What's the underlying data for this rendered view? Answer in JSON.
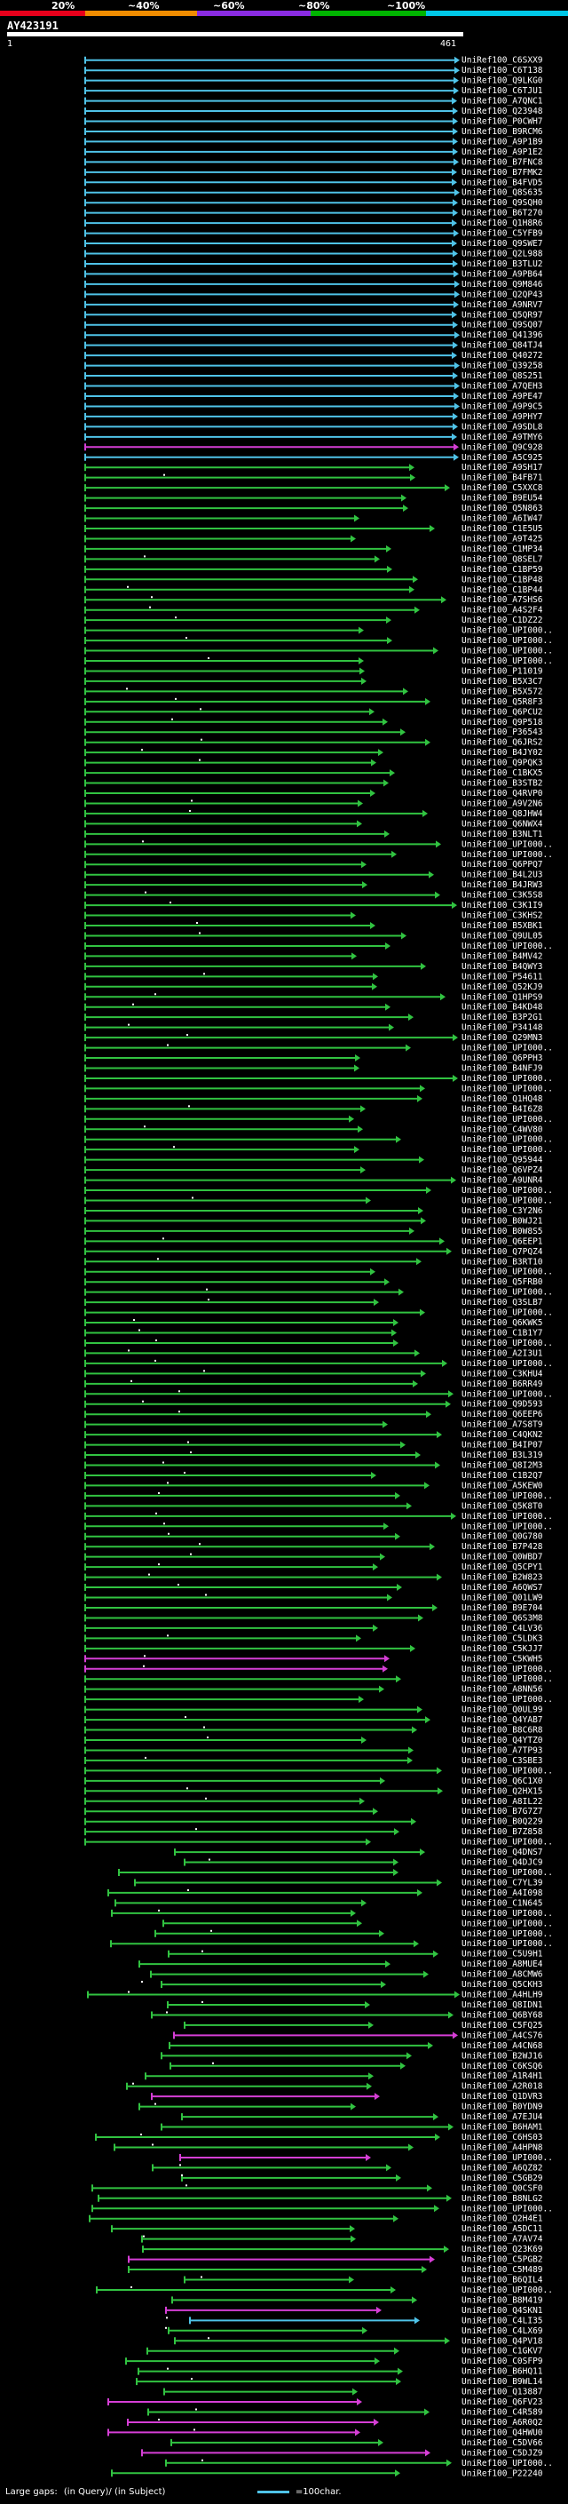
{
  "header": {
    "percent_labels": [
      "20%",
      "~40%",
      "~60%",
      "~80%",
      "~100%"
    ],
    "scale_colors": [
      "#e8001b",
      "#f08c00",
      "#8a2be2",
      "#00b400",
      "#00c8e8"
    ],
    "query_id": "AY423191",
    "start": "1",
    "end": "461"
  },
  "legend": {
    "large_gaps_label": "Large gaps:",
    "in_query_label": "(in Query)/",
    "in_subject_label": "(in Subject)",
    "scale_label": "=100char."
  },
  "colors": {
    "cyan": "#4fc3e8",
    "green": "#31c341",
    "magenta": "#d53ed5",
    "query_bar": "#ffffff"
  },
  "hits": [
    {
      "id": "UniRef100_C6SXX9",
      "color": "cyan"
    },
    {
      "id": "UniRef100_C6T138",
      "color": "cyan"
    },
    {
      "id": "UniRef100_Q9LKG0",
      "color": "cyan"
    },
    {
      "id": "UniRef100_C6TJU1",
      "color": "cyan"
    },
    {
      "id": "UniRef100_A7QNC1",
      "color": "cyan"
    },
    {
      "id": "UniRef100_Q23948",
      "color": "cyan"
    },
    {
      "id": "UniRef100_P0CWH7",
      "color": "cyan"
    },
    {
      "id": "UniRef100_B9RCM6",
      "color": "cyan"
    },
    {
      "id": "UniRef100_A9P1B9",
      "color": "cyan"
    },
    {
      "id": "UniRef100_A9P1E2",
      "color": "cyan"
    },
    {
      "id": "UniRef100_B7FNC8",
      "color": "cyan"
    },
    {
      "id": "UniRef100_B7FMK2",
      "color": "cyan"
    },
    {
      "id": "UniRef100_B4FVD5",
      "color": "cyan"
    },
    {
      "id": "UniRef100_Q8S635",
      "color": "cyan"
    },
    {
      "id": "UniRef100_Q9SQH0",
      "color": "cyan"
    },
    {
      "id": "UniRef100_B6T270",
      "color": "cyan"
    },
    {
      "id": "UniRef100_Q1H8R6",
      "color": "cyan"
    },
    {
      "id": "UniRef100_C5YFB9",
      "color": "cyan"
    },
    {
      "id": "UniRef100_Q9SWE7",
      "color": "cyan"
    },
    {
      "id": "UniRef100_Q2L988",
      "color": "cyan"
    },
    {
      "id": "UniRef100_B3TLU2",
      "color": "cyan"
    },
    {
      "id": "UniRef100_A9PB64",
      "color": "cyan"
    },
    {
      "id": "UniRef100_Q9M846",
      "color": "cyan"
    },
    {
      "id": "UniRef100_Q2QP43",
      "color": "cyan"
    },
    {
      "id": "UniRef100_A9NRV7",
      "color": "cyan"
    },
    {
      "id": "UniRef100_Q5QR97",
      "color": "cyan"
    },
    {
      "id": "UniRef100_Q9SQ07",
      "color": "cyan"
    },
    {
      "id": "UniRef100_Q41396",
      "color": "cyan"
    },
    {
      "id": "UniRef100_Q84TJ4",
      "color": "cyan"
    },
    {
      "id": "UniRef100_Q40272",
      "color": "cyan"
    },
    {
      "id": "UniRef100_Q39258",
      "color": "cyan"
    },
    {
      "id": "UniRef100_Q8S251",
      "color": "cyan"
    },
    {
      "id": "UniRef100_A7QEH3",
      "color": "cyan"
    },
    {
      "id": "UniRef100_A9PE47",
      "color": "cyan"
    },
    {
      "id": "UniRef100_A9P9C5",
      "color": "cyan"
    },
    {
      "id": "UniRef100_A9PHY7",
      "color": "cyan"
    },
    {
      "id": "UniRef100_A9SDL8",
      "color": "cyan"
    },
    {
      "id": "UniRef100_A9TMY6",
      "color": "cyan"
    },
    {
      "id": "UniRef100_Q9C928",
      "color": "magenta"
    },
    {
      "id": "UniRef100_A5C925",
      "color": "cyan"
    },
    {
      "id": "UniRef100_A9SH17",
      "color": "green"
    },
    {
      "id": "UniRef100_B4FB71",
      "color": "green"
    },
    {
      "id": "UniRef100_C5XXC8",
      "color": "green"
    },
    {
      "id": "UniRef100_B9EU54",
      "color": "green"
    },
    {
      "id": "UniRef100_Q5N863",
      "color": "green"
    },
    {
      "id": "UniRef100_A6IW47",
      "color": "green"
    },
    {
      "id": "UniRef100_C1E5U5",
      "color": "green"
    },
    {
      "id": "UniRef100_A9T425",
      "color": "green"
    },
    {
      "id": "UniRef100_C1MP34",
      "color": "green"
    },
    {
      "id": "UniRef100_Q8SEL7",
      "color": "green"
    },
    {
      "id": "UniRef100_C1BP59",
      "color": "green"
    },
    {
      "id": "UniRef100_C1BP48",
      "color": "green"
    },
    {
      "id": "UniRef100_C1BP44",
      "color": "green"
    },
    {
      "id": "UniRef100_A7SHS6",
      "color": "green"
    },
    {
      "id": "UniRef100_A4S2F4",
      "color": "green"
    },
    {
      "id": "UniRef100_C1DZ22",
      "color": "green"
    },
    {
      "id": "UniRef100_UPI000..",
      "color": "green"
    },
    {
      "id": "UniRef100_UPI000..",
      "color": "green"
    },
    {
      "id": "UniRef100_UPI000..",
      "color": "green"
    },
    {
      "id": "UniRef100_UPI000..",
      "color": "green"
    },
    {
      "id": "UniRef100_P11019",
      "color": "green"
    },
    {
      "id": "UniRef100_B5X3C7",
      "color": "green"
    },
    {
      "id": "UniRef100_B5X572",
      "color": "green"
    },
    {
      "id": "UniRef100_Q5R8F3",
      "color": "green"
    },
    {
      "id": "UniRef100_Q6PCU2",
      "color": "green"
    },
    {
      "id": "UniRef100_Q9P518",
      "color": "green"
    },
    {
      "id": "UniRef100_P36543",
      "color": "green"
    },
    {
      "id": "UniRef100_Q6JRS2",
      "color": "green"
    },
    {
      "id": "UniRef100_B4JY02",
      "color": "green"
    },
    {
      "id": "UniRef100_Q9PQK3",
      "color": "green"
    },
    {
      "id": "UniRef100_C1BKX5",
      "color": "green"
    },
    {
      "id": "UniRef100_B3STB2",
      "color": "green"
    },
    {
      "id": "UniRef100_Q4RVP0",
      "color": "green"
    },
    {
      "id": "UniRef100_A9V2N6",
      "color": "green"
    },
    {
      "id": "UniRef100_Q8JHW4",
      "color": "green"
    },
    {
      "id": "UniRef100_Q6NWX4",
      "color": "green"
    },
    {
      "id": "UniRef100_B3NLT1",
      "color": "green"
    },
    {
      "id": "UniRef100_UPI000..",
      "color": "green"
    },
    {
      "id": "UniRef100_UPI000..",
      "color": "green"
    },
    {
      "id": "UniRef100_Q6PPQ7",
      "color": "green"
    },
    {
      "id": "UniRef100_B4L2U3",
      "color": "green"
    },
    {
      "id": "UniRef100_B4JRW3",
      "color": "green"
    },
    {
      "id": "UniRef100_C3K5S8",
      "color": "green"
    },
    {
      "id": "UniRef100_C3K1I9",
      "color": "green"
    },
    {
      "id": "UniRef100_C3KHS2",
      "color": "green"
    },
    {
      "id": "UniRef100_B5XBK1",
      "color": "green"
    },
    {
      "id": "UniRef100_Q9UL05",
      "color": "green"
    },
    {
      "id": "UniRef100_UPI000..",
      "color": "green"
    },
    {
      "id": "UniRef100_B4MV42",
      "color": "green"
    },
    {
      "id": "UniRef100_B4QWY3",
      "color": "green"
    },
    {
      "id": "UniRef100_P54611",
      "color": "green"
    },
    {
      "id": "UniRef100_Q52KJ9",
      "color": "green"
    },
    {
      "id": "UniRef100_Q1HPS9",
      "color": "green"
    },
    {
      "id": "UniRef100_B4KD48",
      "color": "green"
    },
    {
      "id": "UniRef100_B3P2G1",
      "color": "green"
    },
    {
      "id": "UniRef100_P34148",
      "color": "green"
    },
    {
      "id": "UniRef100_Q29MN3",
      "color": "green"
    },
    {
      "id": "UniRef100_UPI000..",
      "color": "green"
    },
    {
      "id": "UniRef100_Q6PPH3",
      "color": "green"
    },
    {
      "id": "UniRef100_B4NFJ9",
      "color": "green"
    },
    {
      "id": "UniRef100_UPI000..",
      "color": "green"
    },
    {
      "id": "UniRef100_UPI000..",
      "color": "green"
    },
    {
      "id": "UniRef100_Q1HQ48",
      "color": "green"
    },
    {
      "id": "UniRef100_B4I6Z8",
      "color": "green"
    },
    {
      "id": "UniRef100_UPI000..",
      "color": "green"
    },
    {
      "id": "UniRef100_C4WV80",
      "color": "green"
    },
    {
      "id": "UniRef100_UPI000..",
      "color": "green"
    },
    {
      "id": "UniRef100_UPI000..",
      "color": "green"
    },
    {
      "id": "UniRef100_Q95944",
      "color": "green"
    },
    {
      "id": "UniRef100_Q6VPZ4",
      "color": "green"
    },
    {
      "id": "UniRef100_A9UNR4",
      "color": "green"
    },
    {
      "id": "UniRef100_UPI000..",
      "color": "green"
    },
    {
      "id": "UniRef100_UPI000..",
      "color": "green"
    },
    {
      "id": "UniRef100_C3Y2N6",
      "color": "green"
    },
    {
      "id": "UniRef100_B0WJ21",
      "color": "green"
    },
    {
      "id": "UniRef100_B0W8S5",
      "color": "green"
    },
    {
      "id": "UniRef100_Q6EEP1",
      "color": "green"
    },
    {
      "id": "UniRef100_Q7PQZ4",
      "color": "green"
    },
    {
      "id": "UniRef100_B3RT10",
      "color": "green"
    },
    {
      "id": "UniRef100_UPI000..",
      "color": "green"
    },
    {
      "id": "UniRef100_Q5FRB0",
      "color": "green"
    },
    {
      "id": "UniRef100_UPI000..",
      "color": "green"
    },
    {
      "id": "UniRef100_Q3SLB7",
      "color": "green"
    },
    {
      "id": "UniRef100_UPI000..",
      "color": "green"
    },
    {
      "id": "UniRef100_Q6KWK5",
      "color": "green"
    },
    {
      "id": "UniRef100_C1B1Y7",
      "color": "green"
    },
    {
      "id": "UniRef100_UPI000..",
      "color": "green"
    },
    {
      "id": "UniRef100_A2I3U1",
      "color": "green"
    },
    {
      "id": "UniRef100_UPI000..",
      "color": "green"
    },
    {
      "id": "UniRef100_C3KHU4",
      "color": "green"
    },
    {
      "id": "UniRef100_B6RR49",
      "color": "green"
    },
    {
      "id": "UniRef100_UPI000..",
      "color": "green"
    },
    {
      "id": "UniRef100_Q9D593",
      "color": "green"
    },
    {
      "id": "UniRef100_Q6EEP6",
      "color": "green"
    },
    {
      "id": "UniRef100_A7S8T9",
      "color": "green"
    },
    {
      "id": "UniRef100_C4QKN2",
      "color": "green"
    },
    {
      "id": "UniRef100_B4IP07",
      "color": "green"
    },
    {
      "id": "UniRef100_B3L319",
      "color": "green"
    },
    {
      "id": "UniRef100_Q8I2M3",
      "color": "green"
    },
    {
      "id": "UniRef100_C1B2Q7",
      "color": "green"
    },
    {
      "id": "UniRef100_A5KEW0",
      "color": "green"
    },
    {
      "id": "UniRef100_UPI000..",
      "color": "green"
    },
    {
      "id": "UniRef100_Q5K8T0",
      "color": "green"
    },
    {
      "id": "UniRef100_UPI000..",
      "color": "green"
    },
    {
      "id": "UniRef100_UPI000..",
      "color": "green"
    },
    {
      "id": "UniRef100_Q0G780",
      "color": "green"
    },
    {
      "id": "UniRef100_B7P428",
      "color": "green"
    },
    {
      "id": "UniRef100_Q0WBD7",
      "color": "green"
    },
    {
      "id": "UniRef100_Q5CPY1",
      "color": "green"
    },
    {
      "id": "UniRef100_B2W823",
      "color": "green"
    },
    {
      "id": "UniRef100_A6QWS7",
      "color": "green"
    },
    {
      "id": "UniRef100_Q01LW9",
      "color": "green"
    },
    {
      "id": "UniRef100_B9E704",
      "color": "green"
    },
    {
      "id": "UniRef100_Q6S3M8",
      "color": "green"
    },
    {
      "id": "UniRef100_C4LV36",
      "color": "green"
    },
    {
      "id": "UniRef100_C5LDK3",
      "color": "green"
    },
    {
      "id": "UniRef100_C5KJJ7",
      "color": "green"
    },
    {
      "id": "UniRef100_C5KWH5",
      "color": "magenta"
    },
    {
      "id": "UniRef100_UPI000..",
      "color": "magenta"
    },
    {
      "id": "UniRef100_UPI000..",
      "color": "green"
    },
    {
      "id": "UniRef100_A8NN56",
      "color": "green"
    },
    {
      "id": "UniRef100_UPI000..",
      "color": "green"
    },
    {
      "id": "UniRef100_Q0UL99",
      "color": "green"
    },
    {
      "id": "UniRef100_Q4YAB7",
      "color": "green"
    },
    {
      "id": "UniRef100_B8C6R8",
      "color": "green"
    },
    {
      "id": "UniRef100_Q4YTZ0",
      "color": "green"
    },
    {
      "id": "UniRef100_A7TP93",
      "color": "green"
    },
    {
      "id": "UniRef100_C3SBE3",
      "color": "green"
    },
    {
      "id": "UniRef100_UPI000..",
      "color": "green"
    },
    {
      "id": "UniRef100_Q6C1X0",
      "color": "green"
    },
    {
      "id": "UniRef100_Q2HX15",
      "color": "green"
    },
    {
      "id": "UniRef100_A8IL22",
      "color": "green"
    },
    {
      "id": "UniRef100_B7G7Z7",
      "color": "green"
    },
    {
      "id": "UniRef100_B0Q229",
      "color": "green"
    },
    {
      "id": "UniRef100_B7Z858",
      "color": "green"
    },
    {
      "id": "UniRef100_UPI000..",
      "color": "green"
    },
    {
      "id": "UniRef100_Q4DNS7",
      "color": "green"
    },
    {
      "id": "UniRef100_Q4DJC9",
      "color": "green"
    },
    {
      "id": "UniRef100_UPI000..",
      "color": "green"
    },
    {
      "id": "UniRef100_C7YL39",
      "color": "green"
    },
    {
      "id": "UniRef100_A4I098",
      "color": "green"
    },
    {
      "id": "UniRef100_C1N645",
      "color": "green"
    },
    {
      "id": "UniRef100_UPI000..",
      "color": "green"
    },
    {
      "id": "UniRef100_UPI000..",
      "color": "green"
    },
    {
      "id": "UniRef100_UPI000..",
      "color": "green"
    },
    {
      "id": "UniRef100_UPI000..",
      "color": "green"
    },
    {
      "id": "UniRef100_C5U9H1",
      "color": "green"
    },
    {
      "id": "UniRef100_A8MUE4",
      "color": "green"
    },
    {
      "id": "UniRef100_A8CMW6",
      "color": "green"
    },
    {
      "id": "UniRef100_Q5CKH3",
      "color": "green"
    },
    {
      "id": "UniRef100_A4HLH9",
      "color": "green"
    },
    {
      "id": "UniRef100_Q8IDN1",
      "color": "green"
    },
    {
      "id": "UniRef100_Q6BY68",
      "color": "green"
    },
    {
      "id": "UniRef100_C5FQ25",
      "color": "green"
    },
    {
      "id": "UniRef100_A4CS76",
      "color": "magenta"
    },
    {
      "id": "UniRef100_A4CN68",
      "color": "green"
    },
    {
      "id": "UniRef100_B2WJ16",
      "color": "green"
    },
    {
      "id": "UniRef100_C6KSQ6",
      "color": "green"
    },
    {
      "id": "UniRef100_A1R4H1",
      "color": "green"
    },
    {
      "id": "UniRef100_A2R018",
      "color": "green"
    },
    {
      "id": "UniRef100_Q1DVR3",
      "color": "magenta"
    },
    {
      "id": "UniRef100_B0YDN9",
      "color": "green"
    },
    {
      "id": "UniRef100_A7EJU4",
      "color": "green"
    },
    {
      "id": "UniRef100_B6HAM1",
      "color": "green"
    },
    {
      "id": "UniRef100_C6HS03",
      "color": "green"
    },
    {
      "id": "UniRef100_A4HPN8",
      "color": "green"
    },
    {
      "id": "UniRef100_UPI000..",
      "color": "magenta"
    },
    {
      "id": "UniRef100_A6QZ82",
      "color": "green"
    },
    {
      "id": "UniRef100_C5GB29",
      "color": "green"
    },
    {
      "id": "UniRef100_Q0CSF0",
      "color": "green"
    },
    {
      "id": "UniRef100_B8NLG2",
      "color": "green"
    },
    {
      "id": "UniRef100_UPI000..",
      "color": "green"
    },
    {
      "id": "UniRef100_Q2H4E1",
      "color": "green"
    },
    {
      "id": "UniRef100_A5DC11",
      "color": "green"
    },
    {
      "id": "UniRef100_A7AV74",
      "color": "green"
    },
    {
      "id": "UniRef100_Q23K69",
      "color": "green"
    },
    {
      "id": "UniRef100_C5PGB2",
      "color": "magenta"
    },
    {
      "id": "UniRef100_C5M489",
      "color": "green"
    },
    {
      "id": "UniRef100_B6QIL4",
      "color": "green"
    },
    {
      "id": "UniRef100_UPI000..",
      "color": "green"
    },
    {
      "id": "UniRef100_B8M419",
      "color": "green"
    },
    {
      "id": "UniRef100_Q4SKN1",
      "color": "magenta"
    },
    {
      "id": "UniRef100_C4LI35",
      "color": "cyan"
    },
    {
      "id": "UniRef100_C4LX69",
      "color": "green"
    },
    {
      "id": "UniRef100_Q4PV18",
      "color": "green"
    },
    {
      "id": "UniRef100_C1GKV7",
      "color": "green"
    },
    {
      "id": "UniRef100_C0SFP9",
      "color": "green"
    },
    {
      "id": "UniRef100_B6HQ11",
      "color": "green"
    },
    {
      "id": "UniRef100_B9WL14",
      "color": "green"
    },
    {
      "id": "UniRef100_Q13887",
      "color": "green"
    },
    {
      "id": "UniRef100_Q6FV23",
      "color": "magenta"
    },
    {
      "id": "UniRef100_C4R589",
      "color": "green"
    },
    {
      "id": "UniRef100_A6R0Q2",
      "color": "magenta"
    },
    {
      "id": "UniRef100_Q4HWU0",
      "color": "magenta"
    },
    {
      "id": "UniRef100_C5DV66",
      "color": "green"
    },
    {
      "id": "UniRef100_C5DJZ9",
      "color": "magenta"
    },
    {
      "id": "UniRef100_UPI000..",
      "color": "green"
    },
    {
      "id": "UniRef100_P22240",
      "color": "green"
    }
  ]
}
